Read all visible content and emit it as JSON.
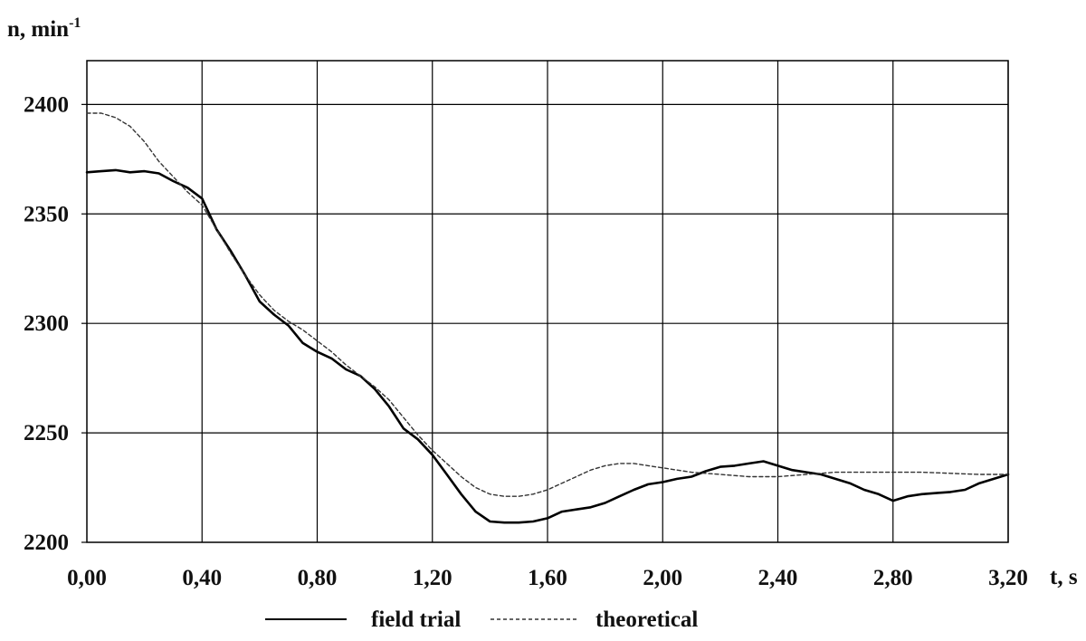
{
  "chart_data": {
    "type": "line",
    "title": "",
    "xlabel": "t, s",
    "ylabel": "n, min",
    "ylabel_sup": "-1",
    "xlim": [
      0,
      3.2
    ],
    "ylim": [
      2200,
      2420
    ],
    "xticks": [
      0,
      0.4,
      0.8,
      1.2,
      1.6,
      2.0,
      2.4,
      2.8,
      3.2
    ],
    "xtick_labels": [
      "0,00",
      "0,40",
      "0,80",
      "1,20",
      "1,60",
      "2,00",
      "2,40",
      "2,80",
      "3,20"
    ],
    "yticks": [
      2200,
      2250,
      2300,
      2350,
      2400
    ],
    "ytick_labels": [
      "2200",
      "2250",
      "2300",
      "2350",
      "2400"
    ],
    "grid": true,
    "legend": "bottom",
    "series": [
      {
        "name": "field trial",
        "style": "solid",
        "color": "#000000",
        "x": [
          0.0,
          0.05,
          0.1,
          0.15,
          0.2,
          0.25,
          0.3,
          0.35,
          0.4,
          0.45,
          0.5,
          0.55,
          0.6,
          0.65,
          0.7,
          0.75,
          0.8,
          0.85,
          0.9,
          0.95,
          1.0,
          1.05,
          1.1,
          1.15,
          1.2,
          1.25,
          1.3,
          1.35,
          1.4,
          1.45,
          1.5,
          1.55,
          1.6,
          1.65,
          1.7,
          1.75,
          1.8,
          1.85,
          1.9,
          1.95,
          2.0,
          2.05,
          2.1,
          2.15,
          2.2,
          2.25,
          2.3,
          2.35,
          2.4,
          2.45,
          2.5,
          2.55,
          2.6,
          2.65,
          2.7,
          2.75,
          2.8,
          2.85,
          2.9,
          2.95,
          3.0,
          3.05,
          3.1,
          3.15,
          3.2
        ],
        "y": [
          2369,
          2369.5,
          2370,
          2369,
          2369.5,
          2368.5,
          2365,
          2362,
          2357,
          2343,
          2333,
          2322,
          2310,
          2304,
          2299,
          2291,
          2287,
          2284,
          2279,
          2276,
          2270,
          2262,
          2252,
          2247,
          2240,
          2231,
          2222,
          2214,
          2209.5,
          2209,
          2209,
          2209.5,
          2211,
          2214,
          2215,
          2216,
          2218,
          2221,
          2224,
          2226.5,
          2227.5,
          2229,
          2230,
          2232.5,
          2234.5,
          2235,
          2236,
          2237,
          2235,
          2233,
          2232,
          2231,
          2229,
          2227,
          2224,
          2222,
          2219,
          2221,
          2222,
          2222.5,
          2223,
          2224,
          2227,
          2229,
          2231
        ]
      },
      {
        "name": "theoretical",
        "style": "dashed",
        "color": "#333333",
        "x": [
          0.0,
          0.05,
          0.1,
          0.15,
          0.2,
          0.25,
          0.3,
          0.35,
          0.4,
          0.45,
          0.5,
          0.55,
          0.6,
          0.65,
          0.7,
          0.75,
          0.8,
          0.85,
          0.9,
          0.95,
          1.0,
          1.05,
          1.1,
          1.15,
          1.2,
          1.25,
          1.3,
          1.35,
          1.4,
          1.45,
          1.5,
          1.55,
          1.6,
          1.65,
          1.7,
          1.75,
          1.8,
          1.85,
          1.9,
          1.95,
          2.0,
          2.1,
          2.2,
          2.3,
          2.4,
          2.5,
          2.6,
          2.7,
          2.8,
          2.9,
          3.0,
          3.1,
          3.2
        ],
        "y": [
          2396,
          2396,
          2394,
          2390,
          2383,
          2374,
          2367,
          2360,
          2354,
          2343,
          2332,
          2322,
          2313,
          2306,
          2301,
          2297,
          2292,
          2287,
          2281,
          2276,
          2271,
          2265,
          2257,
          2249,
          2242,
          2236,
          2230,
          2225,
          2222,
          2221,
          2221,
          2222,
          2224,
          2227,
          2230,
          2233,
          2235,
          2236,
          2236,
          2235,
          2234,
          2232,
          2231,
          2230,
          2230,
          2231,
          2232,
          2232,
          2232,
          2232,
          2231.5,
          2231,
          2231
        ]
      }
    ]
  }
}
